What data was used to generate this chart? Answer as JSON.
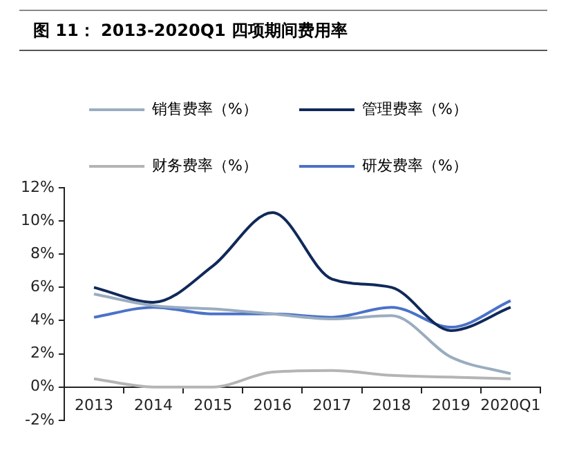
{
  "chart_data": {
    "type": "line",
    "title": "图 11： 2013-2020Q1 四项期间费用率",
    "categories": [
      "2013",
      "2014",
      "2015",
      "2016",
      "2017",
      "2018",
      "2019",
      "2020Q1"
    ],
    "series": [
      {
        "name": "销售费率（%）",
        "color": "#9aacc0",
        "values": [
          5.6,
          4.9,
          4.7,
          4.4,
          4.1,
          4.3,
          1.8,
          0.8
        ]
      },
      {
        "name": "管理费率（%）",
        "color": "#10295a",
        "values": [
          6.0,
          5.1,
          7.3,
          10.5,
          6.5,
          6.0,
          3.4,
          4.8
        ]
      },
      {
        "name": "财务费率（%）",
        "color": "#b4b4b4",
        "values": [
          0.5,
          0.0,
          0.0,
          0.9,
          1.0,
          0.7,
          0.6,
          0.5
        ]
      },
      {
        "name": "研发费率（%）",
        "color": "#4a72c8",
        "values": [
          4.2,
          4.8,
          4.4,
          4.4,
          4.2,
          4.8,
          3.6,
          5.2
        ]
      }
    ],
    "ylim": [
      -2,
      12
    ],
    "yticks": [
      {
        "value": -2,
        "label": "-2%"
      },
      {
        "value": 0,
        "label": "0%"
      },
      {
        "value": 2,
        "label": "2%"
      },
      {
        "value": 4,
        "label": "4%"
      },
      {
        "value": 6,
        "label": "6%"
      },
      {
        "value": 8,
        "label": "8%"
      },
      {
        "value": 10,
        "label": "10%"
      },
      {
        "value": 12,
        "label": "12%"
      }
    ],
    "legend": "top",
    "grid": false,
    "marker": "none",
    "line_style": "solid"
  }
}
